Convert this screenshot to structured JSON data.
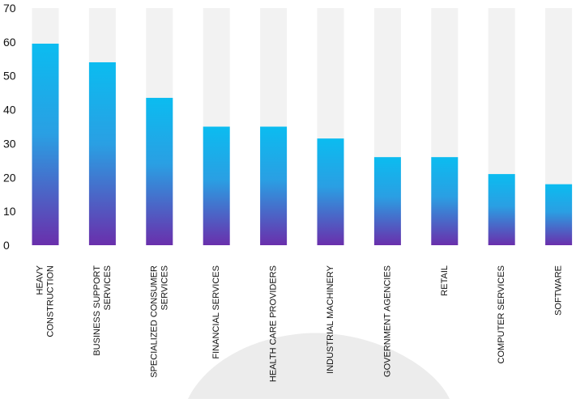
{
  "chart_data": {
    "type": "bar",
    "categories": [
      [
        "HEAVY",
        "CONSTRUCTION"
      ],
      [
        "BUSINESS SUPPORT",
        "SERVICES"
      ],
      [
        "SPECIALIZED CONSUMER",
        "SERVICES"
      ],
      [
        "FINANCIAL SERVICES"
      ],
      [
        "HEALTH CARE PROVIDERS"
      ],
      [
        "INDUSTRIAL MACHINERY"
      ],
      [
        "GOVERNMENT AGENCIES"
      ],
      [
        "RETAIL"
      ],
      [
        "COMPUTER SERVICES"
      ],
      [
        "SOFTWARE"
      ]
    ],
    "values": [
      59.5,
      54,
      43.5,
      35,
      35,
      31.5,
      26,
      26,
      21,
      18
    ],
    "ylim": [
      0,
      70
    ],
    "yticks": [
      0,
      10,
      20,
      30,
      40,
      50,
      60,
      70
    ],
    "title": "",
    "xlabel": "",
    "ylabel": "",
    "grid": false,
    "background_track": true,
    "colors": {
      "bar_top": "#0bbcf0",
      "bar_bottom": "#6a2fac",
      "track": "#f2f2f2",
      "watermark": "#ececec",
      "text": "#111111"
    }
  }
}
